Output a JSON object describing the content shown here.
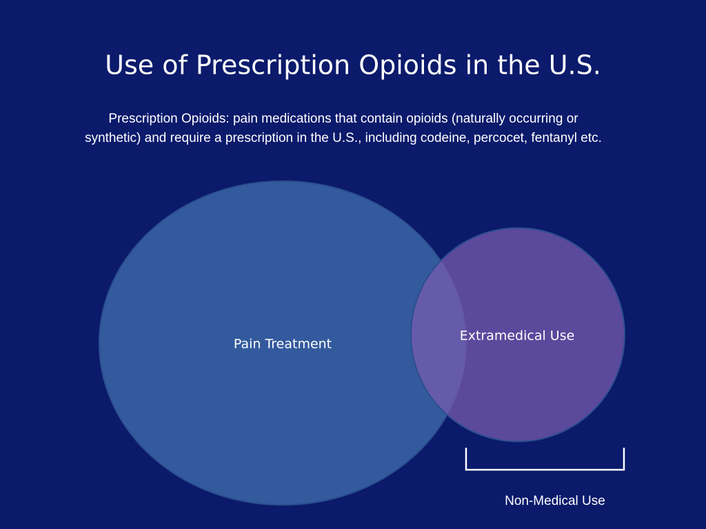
{
  "title": "Use of Prescription Opioids in the U.S.",
  "subtitle": [
    "Prescription Opioids: pain medications that contain opioids (naturally occurring or",
    "synthetic) and require a prescription in the U.S., including codeine, percocet, fentanyl etc."
  ],
  "venn": {
    "sets": [
      {
        "label": "Pain Treatment"
      },
      {
        "label": "Extramedical Use"
      }
    ]
  },
  "bracket": {
    "label": "Non-Medical Use"
  }
}
